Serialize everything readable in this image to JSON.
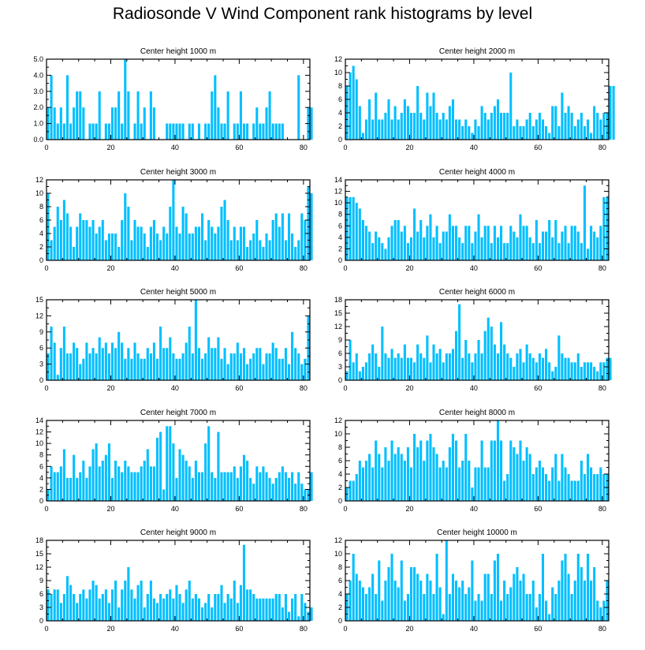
{
  "title": "Radiosonde V Wind Component rank histograms by level",
  "colors": {
    "bar": "#00bfff",
    "axis": "#000000",
    "background": "#ffffff"
  },
  "chart_data": [
    {
      "type": "bar",
      "title": "Center height 1000 m",
      "xlim": [
        0,
        82
      ],
      "xticks": [
        0,
        20,
        40,
        60,
        80
      ],
      "ylim": [
        0,
        5
      ],
      "yticks": [
        0,
        1,
        2,
        3,
        4,
        5
      ],
      "ytick_labels": [
        "0.0",
        "1.0",
        "2.0",
        "3.0",
        "4.0",
        "5.0"
      ],
      "values": [
        2,
        4,
        2,
        1,
        2,
        1,
        4,
        1,
        2,
        3,
        3,
        2,
        0,
        1,
        1,
        1,
        3,
        0,
        1,
        1,
        2,
        2,
        3,
        1,
        5,
        3,
        0,
        1,
        3,
        1,
        2,
        0,
        3,
        2,
        0,
        0,
        0,
        1,
        1,
        1,
        1,
        1,
        1,
        0,
        1,
        1,
        0,
        1,
        0,
        1,
        1,
        3,
        4,
        2,
        1,
        1,
        3,
        0,
        1,
        1,
        3,
        1,
        1,
        0,
        1,
        2,
        1,
        1,
        2,
        3,
        1,
        1,
        1,
        1,
        0,
        0,
        0,
        0,
        4,
        0,
        0,
        2,
        2
      ]
    },
    {
      "type": "bar",
      "title": "Center height 2000 m",
      "xlim": [
        0,
        82
      ],
      "xticks": [
        0,
        20,
        40,
        60,
        80
      ],
      "ylim": [
        0,
        12
      ],
      "yticks": [
        0,
        2,
        4,
        6,
        8,
        10,
        12
      ],
      "ytick_labels": [
        "0",
        "2",
        "4",
        "6",
        "8",
        "10",
        "12"
      ],
      "values": [
        8,
        10,
        11,
        9,
        5,
        1,
        3,
        6,
        3,
        7,
        3,
        3,
        4,
        6,
        3,
        5,
        3,
        4,
        6,
        5,
        4,
        4,
        8,
        4,
        3,
        7,
        5,
        7,
        4,
        3,
        4,
        3,
        5,
        6,
        3,
        3,
        2,
        3,
        2,
        1,
        3,
        2,
        5,
        4,
        3,
        4,
        5,
        6,
        4,
        4,
        4,
        10,
        2,
        3,
        2,
        2,
        3,
        4,
        2,
        3,
        4,
        3,
        2,
        1,
        5,
        5,
        2,
        7,
        4,
        5,
        4,
        2,
        3,
        4,
        2,
        3,
        1,
        5,
        4,
        3,
        4,
        4,
        8,
        8
      ]
    },
    {
      "type": "bar",
      "title": "Center height 3000 m",
      "xlim": [
        0,
        82
      ],
      "xticks": [
        0,
        20,
        40,
        60,
        80
      ],
      "ylim": [
        0,
        12
      ],
      "yticks": [
        0,
        2,
        4,
        6,
        8,
        10,
        12
      ],
      "ytick_labels": [
        "0",
        "2",
        "4",
        "6",
        "8",
        "10",
        "12"
      ],
      "values": [
        10,
        3,
        5,
        8,
        6,
        9,
        7,
        5,
        2,
        5,
        7,
        6,
        6,
        5,
        6,
        4,
        5,
        6,
        3,
        4,
        4,
        4,
        2,
        6,
        10,
        8,
        3,
        6,
        5,
        5,
        4,
        2,
        5,
        6,
        4,
        3,
        5,
        4,
        8,
        12,
        5,
        4,
        8,
        7,
        4,
        4,
        5,
        5,
        7,
        3,
        6,
        5,
        4,
        5,
        8,
        9,
        6,
        3,
        5,
        3,
        5,
        5,
        2,
        3,
        4,
        6,
        3,
        2,
        4,
        3,
        6,
        7,
        5,
        7,
        3,
        7,
        4,
        2,
        3,
        7,
        6,
        11,
        10
      ]
    },
    {
      "type": "bar",
      "title": "Center height 4000 m",
      "xlim": [
        0,
        82
      ],
      "xticks": [
        0,
        20,
        40,
        60,
        80
      ],
      "ylim": [
        0,
        14
      ],
      "yticks": [
        0,
        2,
        4,
        6,
        8,
        10,
        12,
        14
      ],
      "ytick_labels": [
        "0",
        "2",
        "4",
        "6",
        "8",
        "10",
        "12",
        "14"
      ],
      "values": [
        11,
        11,
        11,
        10,
        9,
        7,
        6,
        5,
        3,
        5,
        4,
        3,
        2,
        4,
        6,
        7,
        7,
        5,
        6,
        3,
        4,
        9,
        5,
        7,
        4,
        6,
        8,
        4,
        6,
        3,
        5,
        5,
        8,
        6,
        6,
        4,
        3,
        6,
        6,
        3,
        5,
        8,
        4,
        6,
        6,
        3,
        6,
        4,
        6,
        3,
        3,
        6,
        5,
        4,
        8,
        6,
        6,
        4,
        3,
        7,
        3,
        5,
        5,
        7,
        4,
        7,
        3,
        5,
        6,
        3,
        6,
        6,
        5,
        3,
        13,
        2,
        6,
        5,
        4,
        6,
        11,
        11
      ]
    },
    {
      "type": "bar",
      "title": "Center height 5000 m",
      "xlim": [
        0,
        82
      ],
      "xticks": [
        0,
        20,
        40,
        60,
        80
      ],
      "ylim": [
        0,
        15
      ],
      "yticks": [
        0,
        3,
        6,
        9,
        12,
        15
      ],
      "ytick_labels": [
        "0",
        "3",
        "6",
        "9",
        "12",
        "15"
      ],
      "values": [
        5,
        10,
        7,
        1,
        6,
        10,
        5,
        5,
        7,
        6,
        3,
        4,
        7,
        5,
        6,
        5,
        8,
        6,
        7,
        5,
        7,
        6,
        9,
        7,
        4,
        6,
        4,
        7,
        5,
        4,
        4,
        6,
        5,
        7,
        4,
        10,
        6,
        6,
        8,
        5,
        4,
        4,
        5,
        7,
        10,
        5,
        15,
        6,
        4,
        5,
        8,
        6,
        6,
        8,
        4,
        6,
        3,
        5,
        5,
        7,
        5,
        6,
        3,
        4,
        5,
        6,
        6,
        3,
        5,
        5,
        7,
        6,
        4,
        4,
        6,
        3,
        9,
        6,
        5,
        3,
        4,
        12
      ]
    },
    {
      "type": "bar",
      "title": "Center height 6000 m",
      "xlim": [
        0,
        82
      ],
      "xticks": [
        0,
        20,
        40,
        60,
        80
      ],
      "ylim": [
        0,
        18
      ],
      "yticks": [
        0,
        3,
        6,
        9,
        12,
        15,
        18
      ],
      "ytick_labels": [
        "0",
        "3",
        "6",
        "9",
        "12",
        "15",
        "18"
      ],
      "values": [
        2,
        9,
        4,
        6,
        2,
        3,
        4,
        6,
        8,
        6,
        3,
        12,
        6,
        5,
        7,
        5,
        6,
        5,
        8,
        5,
        5,
        4,
        8,
        6,
        5,
        10,
        4,
        8,
        6,
        7,
        4,
        6,
        6,
        7,
        11,
        17,
        5,
        9,
        6,
        4,
        6,
        9,
        6,
        11,
        14,
        12,
        8,
        6,
        13,
        8,
        6,
        5,
        3,
        6,
        7,
        4,
        8,
        6,
        5,
        4,
        6,
        5,
        7,
        4,
        2,
        3,
        10,
        6,
        5,
        5,
        4,
        4,
        6,
        3,
        4,
        4,
        4,
        3,
        2,
        4,
        4,
        5,
        5
      ]
    },
    {
      "type": "bar",
      "title": "Center height 7000 m",
      "xlim": [
        0,
        82
      ],
      "xticks": [
        0,
        20,
        40,
        60,
        80
      ],
      "ylim": [
        0,
        14
      ],
      "yticks": [
        0,
        2,
        4,
        6,
        8,
        10,
        12,
        14
      ],
      "ytick_labels": [
        "0",
        "2",
        "4",
        "6",
        "8",
        "10",
        "12",
        "14"
      ],
      "values": [
        2,
        6,
        5,
        5,
        6,
        9,
        4,
        4,
        8,
        4,
        5,
        7,
        4,
        6,
        9,
        10,
        6,
        7,
        8,
        10,
        4,
        7,
        6,
        5,
        7,
        6,
        5,
        5,
        5,
        6,
        7,
        9,
        6,
        6,
        11,
        12,
        2,
        13,
        13,
        10,
        4,
        9,
        8,
        7,
        6,
        4,
        7,
        5,
        5,
        10,
        13,
        5,
        4,
        12,
        5,
        5,
        5,
        5,
        6,
        4,
        6,
        8,
        7,
        4,
        3,
        6,
        5,
        6,
        5,
        4,
        3,
        4,
        5,
        6,
        5,
        4,
        5,
        3,
        5,
        3,
        2,
        2,
        5
      ]
    },
    {
      "type": "bar",
      "title": "Center height 8000 m",
      "xlim": [
        0,
        82
      ],
      "xticks": [
        0,
        20,
        40,
        60,
        80
      ],
      "ylim": [
        0,
        12
      ],
      "yticks": [
        0,
        2,
        4,
        6,
        8,
        10,
        12
      ],
      "ytick_labels": [
        "0",
        "2",
        "4",
        "6",
        "8",
        "10",
        "12"
      ],
      "values": [
        2,
        3,
        3,
        4,
        6,
        5,
        6,
        7,
        5,
        9,
        7,
        5,
        8,
        6,
        9,
        7,
        8,
        7,
        6,
        8,
        5,
        10,
        8,
        9,
        6,
        9,
        10,
        8,
        7,
        5,
        6,
        5,
        8,
        10,
        9,
        5,
        6,
        10,
        6,
        2,
        5,
        5,
        9,
        5,
        5,
        9,
        9,
        12,
        9,
        3,
        4,
        9,
        8,
        7,
        9,
        6,
        8,
        7,
        4,
        5,
        6,
        5,
        4,
        3,
        5,
        7,
        3,
        7,
        5,
        4,
        3,
        3,
        3,
        6,
        4,
        7,
        5,
        4,
        4,
        5,
        4,
        4
      ]
    },
    {
      "type": "bar",
      "title": "Center height 9000 m",
      "xlim": [
        0,
        82
      ],
      "xticks": [
        0,
        20,
        40,
        60,
        80
      ],
      "ylim": [
        0,
        18
      ],
      "yticks": [
        0,
        3,
        6,
        9,
        12,
        15,
        18
      ],
      "ytick_labels": [
        "0",
        "3",
        "6",
        "9",
        "12",
        "15",
        "18"
      ],
      "values": [
        7,
        6,
        7,
        7,
        4,
        6,
        10,
        8,
        6,
        4,
        6,
        7,
        5,
        7,
        9,
        8,
        5,
        6,
        7,
        4,
        7,
        9,
        3,
        7,
        9,
        12,
        7,
        5,
        8,
        9,
        3,
        6,
        9,
        5,
        4,
        6,
        5,
        6,
        7,
        5,
        8,
        6,
        4,
        7,
        9,
        5,
        6,
        5,
        3,
        4,
        6,
        3,
        6,
        6,
        8,
        4,
        6,
        5,
        9,
        4,
        8,
        17,
        7,
        7,
        6,
        5,
        5,
        5,
        5,
        5,
        5,
        6,
        6,
        3,
        6,
        2,
        5,
        6,
        1,
        6,
        4,
        2,
        3
      ]
    },
    {
      "type": "bar",
      "title": "Center height 10000 m",
      "xlim": [
        0,
        82
      ],
      "xticks": [
        0,
        20,
        40,
        60,
        80
      ],
      "ylim": [
        0,
        12
      ],
      "yticks": [
        0,
        2,
        4,
        6,
        8,
        10,
        12
      ],
      "ytick_labels": [
        "0",
        "2",
        "4",
        "6",
        "8",
        "10",
        "12"
      ],
      "values": [
        4,
        6,
        10,
        7,
        6,
        5,
        4,
        5,
        7,
        4,
        9,
        3,
        6,
        8,
        10,
        6,
        5,
        9,
        3,
        4,
        8,
        8,
        7,
        6,
        4,
        7,
        6,
        4,
        10,
        5,
        1,
        12,
        4,
        7,
        6,
        5,
        6,
        4,
        5,
        9,
        3,
        4,
        3,
        7,
        7,
        4,
        9,
        10,
        3,
        6,
        4,
        5,
        7,
        8,
        6,
        7,
        4,
        4,
        6,
        2,
        4,
        10,
        3,
        1,
        5,
        4,
        6,
        9,
        10,
        7,
        4,
        6,
        10,
        8,
        6,
        10,
        6,
        8,
        3,
        2,
        3,
        6
      ]
    }
  ]
}
